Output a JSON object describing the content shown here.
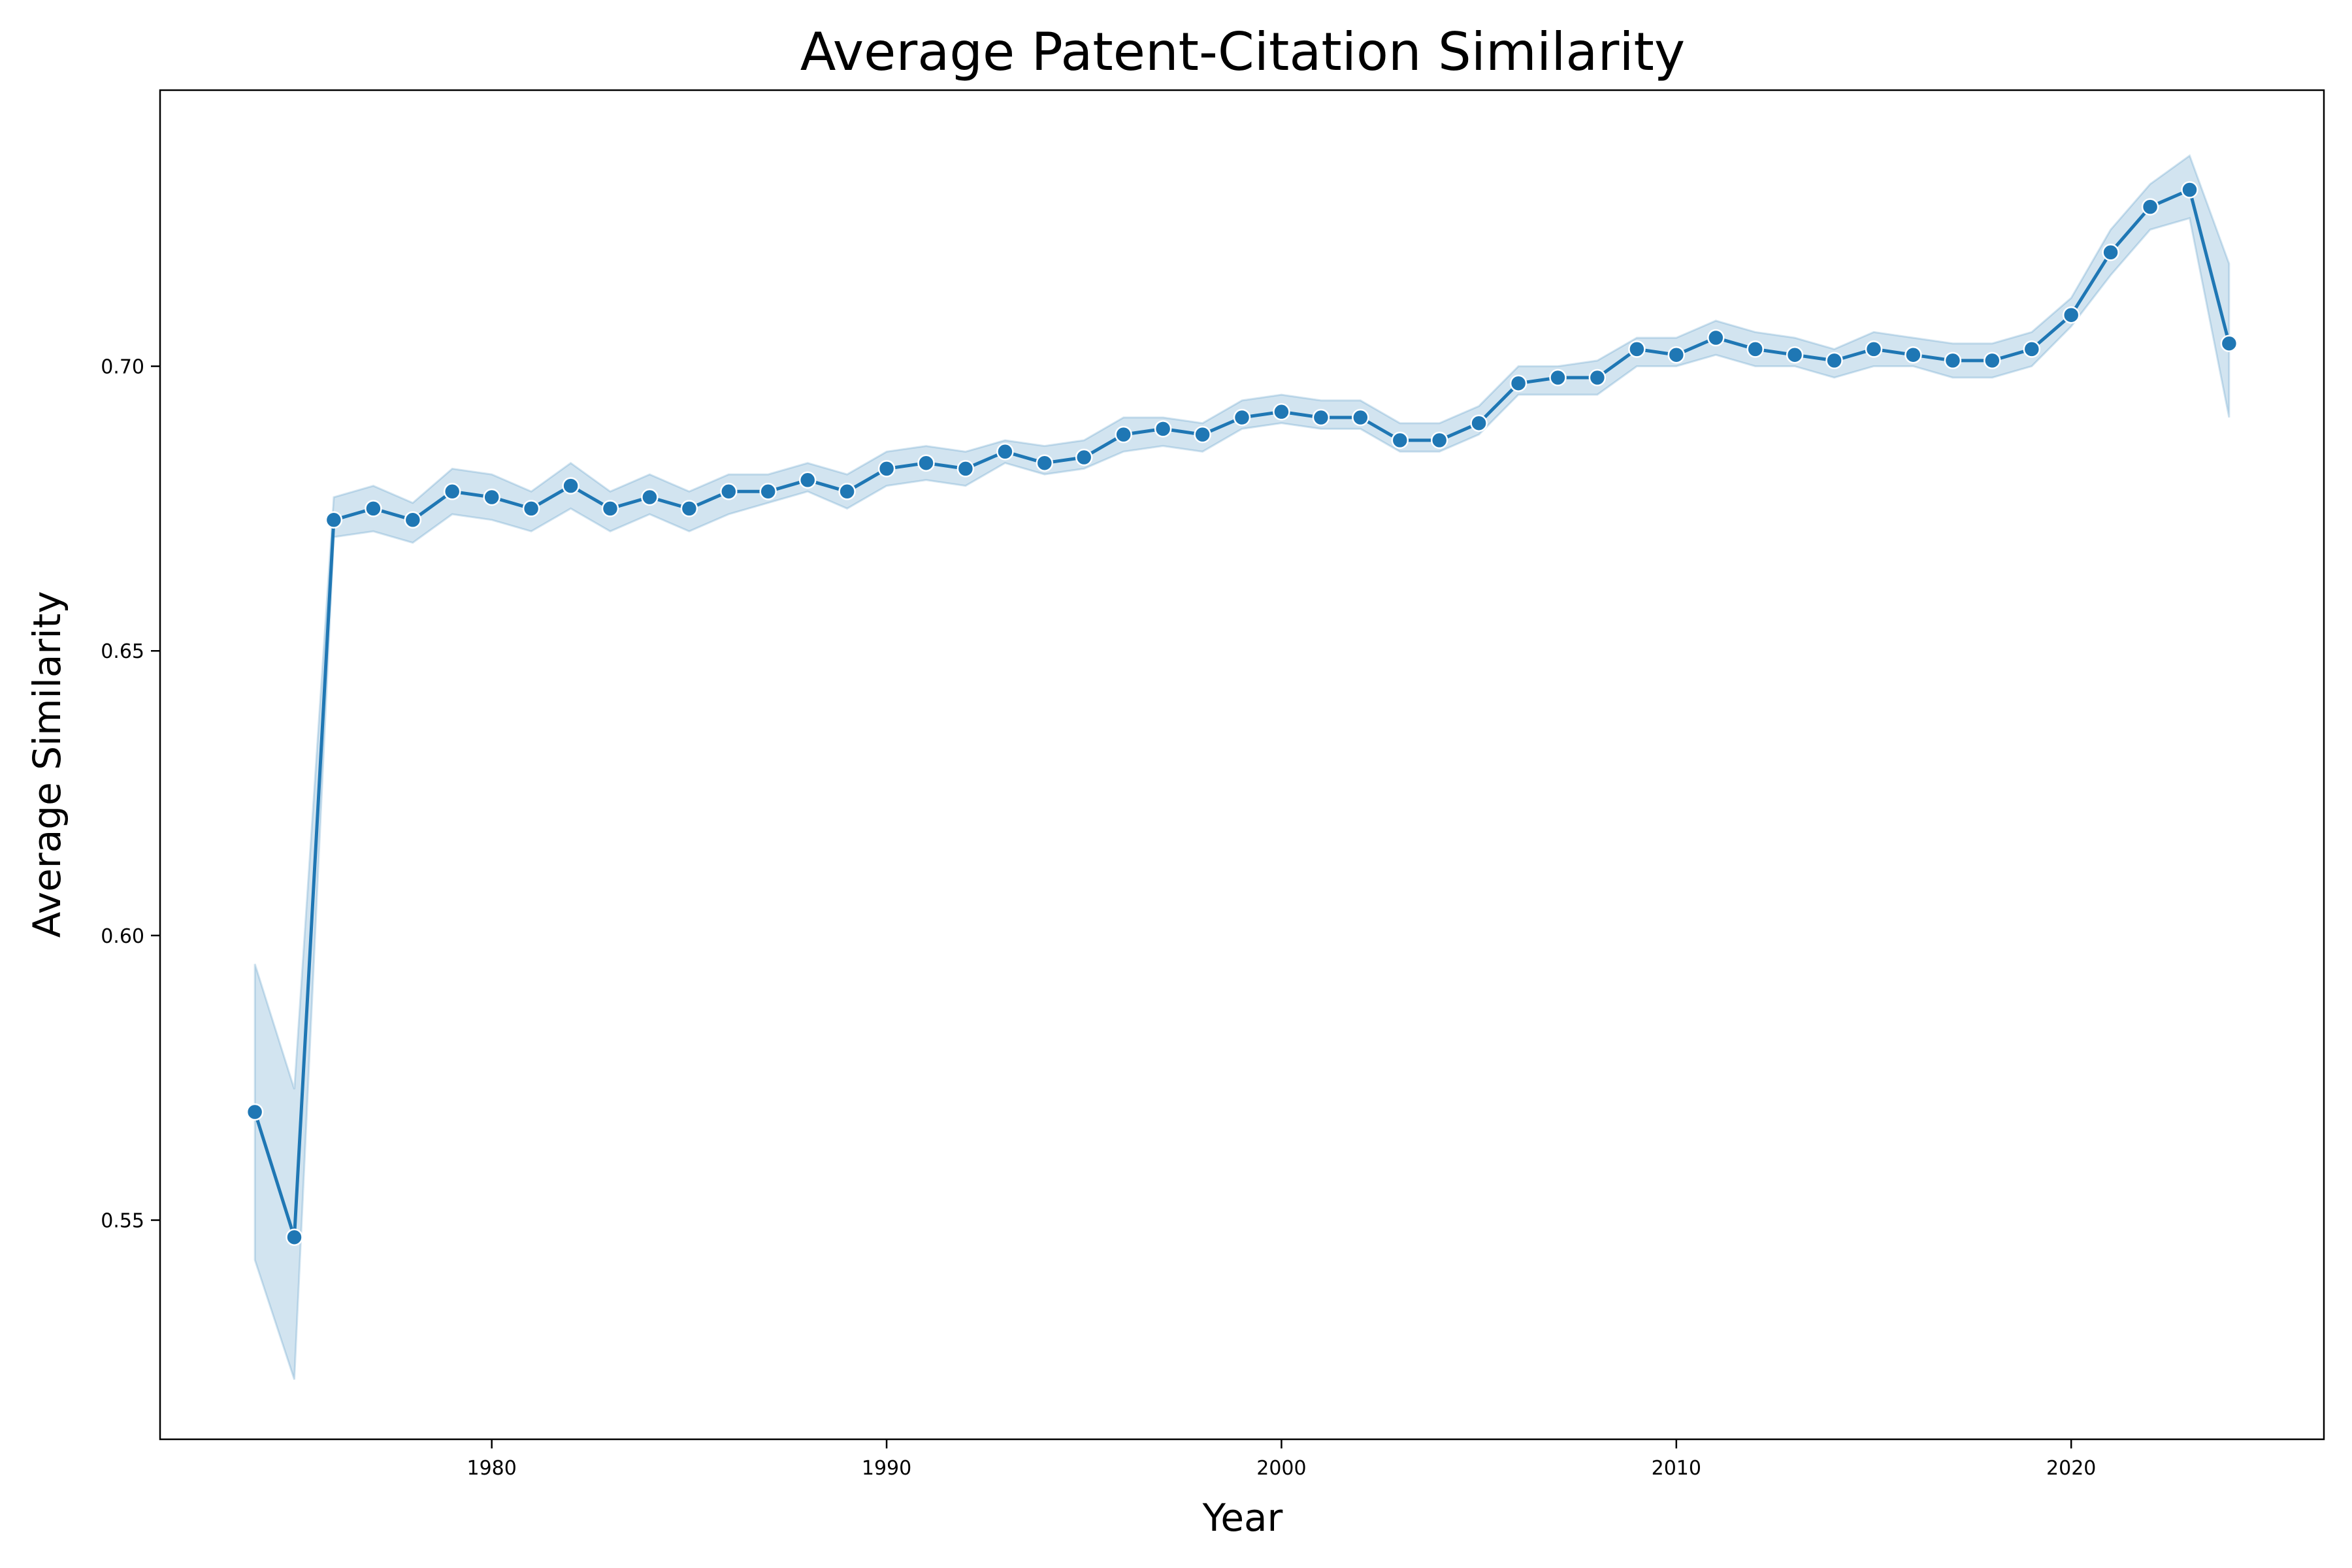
{
  "chart_data": {
    "type": "line",
    "title": "Average Patent-Citation Similarity",
    "xlabel": "Year",
    "ylabel": "Average Similarity",
    "xlim": [
      1971.6,
      2026.4
    ],
    "ylim": [
      0.5115,
      0.7485
    ],
    "xticks": [
      1980,
      1990,
      2000,
      2010,
      2020
    ],
    "yticks": [
      0.55,
      0.6,
      0.65,
      0.7
    ],
    "xtick_labels": [
      "1980",
      "1990",
      "2000",
      "2010",
      "2020"
    ],
    "ytick_labels": [
      "0.55",
      "0.60",
      "0.65",
      "0.70"
    ],
    "grid": false,
    "legend": "none",
    "colors": {
      "line": "#1f77b4",
      "band": "#1f77b4"
    },
    "series": [
      {
        "x": [
          1974,
          1975,
          1976,
          1977,
          1978,
          1979,
          1980,
          1981,
          1982,
          1983,
          1984,
          1985,
          1986,
          1987,
          1988,
          1989,
          1990,
          1991,
          1992,
          1993,
          1994,
          1995,
          1996,
          1997,
          1998,
          1999,
          2000,
          2001,
          2002,
          2003,
          2004,
          2005,
          2006,
          2007,
          2008,
          2009,
          2010,
          2011,
          2012,
          2013,
          2014,
          2015,
          2016,
          2017,
          2018,
          2019,
          2020,
          2021,
          2022,
          2023,
          2024
        ],
        "y": [
          0.569,
          0.547,
          0.673,
          0.675,
          0.673,
          0.678,
          0.677,
          0.675,
          0.679,
          0.675,
          0.677,
          0.675,
          0.678,
          0.678,
          0.68,
          0.678,
          0.682,
          0.683,
          0.682,
          0.685,
          0.683,
          0.684,
          0.688,
          0.689,
          0.688,
          0.691,
          0.692,
          0.691,
          0.691,
          0.687,
          0.687,
          0.69,
          0.697,
          0.698,
          0.698,
          0.703,
          0.702,
          0.705,
          0.703,
          0.702,
          0.701,
          0.703,
          0.702,
          0.701,
          0.701,
          0.703,
          0.709,
          0.72,
          0.728,
          0.731,
          0.704
        ],
        "lower": [
          0.543,
          0.522,
          0.67,
          0.671,
          0.669,
          0.674,
          0.673,
          0.671,
          0.675,
          0.671,
          0.674,
          0.671,
          0.674,
          0.676,
          0.678,
          0.675,
          0.679,
          0.68,
          0.679,
          0.683,
          0.681,
          0.682,
          0.685,
          0.686,
          0.685,
          0.689,
          0.69,
          0.689,
          0.689,
          0.685,
          0.685,
          0.688,
          0.695,
          0.695,
          0.695,
          0.7,
          0.7,
          0.702,
          0.7,
          0.7,
          0.698,
          0.7,
          0.7,
          0.698,
          0.698,
          0.7,
          0.707,
          0.716,
          0.724,
          0.726,
          0.691
        ],
        "upper": [
          0.595,
          0.573,
          0.677,
          0.679,
          0.676,
          0.682,
          0.681,
          0.678,
          0.683,
          0.678,
          0.681,
          0.678,
          0.681,
          0.681,
          0.683,
          0.681,
          0.685,
          0.686,
          0.685,
          0.687,
          0.686,
          0.687,
          0.691,
          0.691,
          0.69,
          0.694,
          0.695,
          0.694,
          0.694,
          0.69,
          0.69,
          0.693,
          0.7,
          0.7,
          0.701,
          0.705,
          0.705,
          0.708,
          0.706,
          0.705,
          0.703,
          0.706,
          0.705,
          0.704,
          0.704,
          0.706,
          0.712,
          0.724,
          0.732,
          0.737,
          0.718
        ]
      }
    ]
  }
}
